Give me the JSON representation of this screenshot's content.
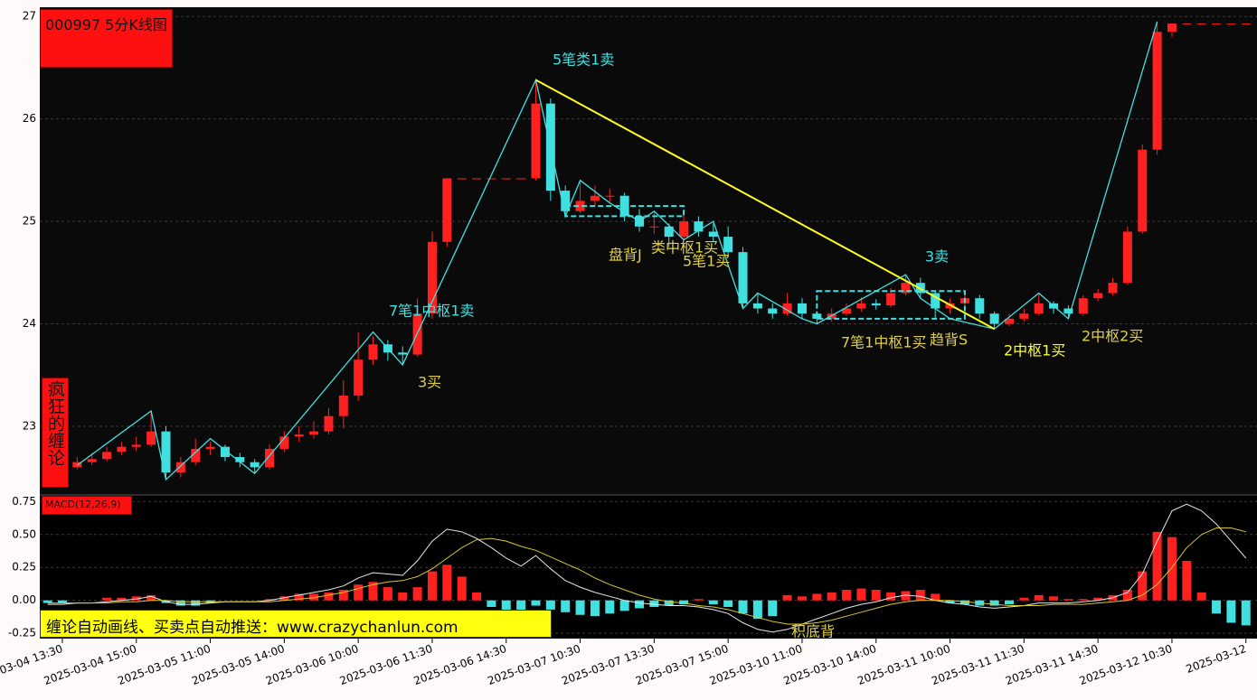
{
  "chart_data": [
    {
      "type": "candlestick",
      "title": "000997 5分K线图",
      "side_label": "疯狂的缠论",
      "categories": [
        null,
        "2025-03-04 13:30",
        null,
        null,
        null,
        null,
        "2025-03-04 15:00",
        null,
        null,
        null,
        null,
        "2025-03-05 11:00",
        null,
        null,
        null,
        null,
        "2025-03-05 14:00",
        null,
        null,
        null,
        null,
        "2025-03-06 10:00",
        null,
        null,
        null,
        null,
        "2025-03-06 11:30",
        null,
        null,
        null,
        null,
        "2025-03-06 14:30",
        null,
        null,
        null,
        null,
        "2025-03-07 10:30",
        null,
        null,
        null,
        null,
        "2025-03-07 13:30",
        null,
        null,
        null,
        null,
        "2025-03-07 15:00",
        null,
        null,
        null,
        null,
        "2025-03-10 11:00",
        null,
        null,
        null,
        null,
        "2025-03-10 14:00",
        null,
        null,
        null,
        null,
        "2025-03-11 10:00",
        null,
        null,
        null,
        null,
        "2025-03-11 11:30",
        null,
        null,
        null,
        null,
        "2025-03-11 14:30",
        null,
        null,
        null,
        null,
        "2025-03-12 10:30",
        null,
        null,
        null,
        null,
        "2025-03-12"
      ],
      "candles": [
        [
          22.6,
          22.68,
          22.58,
          22.62
        ],
        [
          22.62,
          22.68,
          22.56,
          22.6
        ],
        [
          22.6,
          22.7,
          22.58,
          22.65
        ],
        [
          22.65,
          22.74,
          22.62,
          22.68
        ],
        [
          22.68,
          22.8,
          22.66,
          22.75
        ],
        [
          22.75,
          22.85,
          22.72,
          22.8
        ],
        [
          22.8,
          22.9,
          22.76,
          22.82
        ],
        [
          22.82,
          23.15,
          22.8,
          22.95
        ],
        [
          22.95,
          23.0,
          22.48,
          22.55
        ],
        [
          22.55,
          22.7,
          22.5,
          22.65
        ],
        [
          22.65,
          22.88,
          22.62,
          22.78
        ],
        [
          22.78,
          22.85,
          22.72,
          22.8
        ],
        [
          22.8,
          22.82,
          22.66,
          22.7
        ],
        [
          22.7,
          22.74,
          22.6,
          22.65
        ],
        [
          22.65,
          22.68,
          22.54,
          22.6
        ],
        [
          22.6,
          22.82,
          22.58,
          22.78
        ],
        [
          22.78,
          22.95,
          22.75,
          22.9
        ],
        [
          22.9,
          23.0,
          22.85,
          22.92
        ],
        [
          22.92,
          23.05,
          22.88,
          22.95
        ],
        [
          22.95,
          23.18,
          22.92,
          23.1
        ],
        [
          23.1,
          23.45,
          22.98,
          23.3
        ],
        [
          23.3,
          23.92,
          23.25,
          23.65
        ],
        [
          23.65,
          23.88,
          23.6,
          23.8
        ],
        [
          23.8,
          23.84,
          23.64,
          23.72
        ],
        [
          23.72,
          23.78,
          23.6,
          23.7
        ],
        [
          23.7,
          24.25,
          23.68,
          24.1
        ],
        [
          24.1,
          24.9,
          24.05,
          24.8
        ],
        [
          24.8,
          25.42,
          24.75,
          25.42
        ],
        [
          25.42,
          25.42,
          25.42,
          25.42
        ],
        [
          25.42,
          25.42,
          25.42,
          25.42
        ],
        [
          25.42,
          25.42,
          25.42,
          25.42
        ],
        [
          25.42,
          25.42,
          25.42,
          25.42
        ],
        [
          25.42,
          25.42,
          25.42,
          25.42
        ],
        [
          25.42,
          26.38,
          25.4,
          26.15
        ],
        [
          26.15,
          26.2,
          25.2,
          25.3
        ],
        [
          25.3,
          25.35,
          25.05,
          25.1
        ],
        [
          25.1,
          25.4,
          25.08,
          25.2
        ],
        [
          25.2,
          25.35,
          25.15,
          25.25
        ],
        [
          25.25,
          25.32,
          25.18,
          25.25
        ],
        [
          25.25,
          25.28,
          25.0,
          25.05
        ],
        [
          25.05,
          25.12,
          24.9,
          24.95
        ],
        [
          24.95,
          25.1,
          24.88,
          24.95
        ],
        [
          24.95,
          24.98,
          24.75,
          24.85
        ],
        [
          24.85,
          25.08,
          24.82,
          25.0
        ],
        [
          25.0,
          25.05,
          24.85,
          24.9
        ],
        [
          24.9,
          24.98,
          24.8,
          24.85
        ],
        [
          24.85,
          24.95,
          24.65,
          24.7
        ],
        [
          24.7,
          24.75,
          24.15,
          24.2
        ],
        [
          24.2,
          24.3,
          24.1,
          24.15
        ],
        [
          24.15,
          24.2,
          24.05,
          24.1
        ],
        [
          24.1,
          24.3,
          24.08,
          24.2
        ],
        [
          24.2,
          24.25,
          24.05,
          24.1
        ],
        [
          24.1,
          24.12,
          24.0,
          24.05
        ],
        [
          24.05,
          24.15,
          24.02,
          24.1
        ],
        [
          24.1,
          24.2,
          24.08,
          24.15
        ],
        [
          24.15,
          24.26,
          24.12,
          24.2
        ],
        [
          24.2,
          24.24,
          24.14,
          24.18
        ],
        [
          24.18,
          24.35,
          24.16,
          24.3
        ],
        [
          24.3,
          24.48,
          24.28,
          24.4
        ],
        [
          24.4,
          24.45,
          24.25,
          24.3
        ],
        [
          24.3,
          24.32,
          24.05,
          24.15
        ],
        [
          24.15,
          24.25,
          24.1,
          24.2
        ],
        [
          24.2,
          24.32,
          24.18,
          24.25
        ],
        [
          24.25,
          24.28,
          24.05,
          24.1
        ],
        [
          24.1,
          24.12,
          23.95,
          24.0
        ],
        [
          24.0,
          24.1,
          23.98,
          24.05
        ],
        [
          24.05,
          24.15,
          24.02,
          24.1
        ],
        [
          24.1,
          24.3,
          24.08,
          24.2
        ],
        [
          24.2,
          24.22,
          24.1,
          24.15
        ],
        [
          24.15,
          24.18,
          24.05,
          24.1
        ],
        [
          24.1,
          24.28,
          24.08,
          24.25
        ],
        [
          24.25,
          24.34,
          24.22,
          24.3
        ],
        [
          24.3,
          24.45,
          24.28,
          24.4
        ],
        [
          24.4,
          24.95,
          24.38,
          24.9
        ],
        [
          24.9,
          25.75,
          24.88,
          25.7
        ],
        [
          25.7,
          26.95,
          25.65,
          26.85
        ],
        [
          26.85,
          26.93,
          26.8,
          26.93
        ],
        [
          26.93,
          26.93,
          26.93,
          26.93
        ],
        [
          26.93,
          26.93,
          26.93,
          26.93
        ],
        [
          26.93,
          26.93,
          26.93,
          26.93
        ],
        [
          26.93,
          26.93,
          26.93,
          26.93
        ],
        [
          26.93,
          26.93,
          26.93,
          26.93
        ]
      ],
      "up_color": "#ff2020",
      "down_color": "#40e0e0",
      "ylim": [
        22.33,
        27.09
      ],
      "yticks": [
        23,
        24,
        25,
        26,
        27
      ],
      "grid": true,
      "bi": {
        "color": "#40e0e0",
        "x": [
          2,
          7,
          8,
          11,
          14,
          22,
          24,
          33,
          35,
          36,
          38,
          40,
          41,
          43,
          45,
          47,
          48,
          51,
          52,
          58,
          59,
          61,
          64,
          67,
          69,
          75
        ],
        "values": [
          22.62,
          23.15,
          22.48,
          22.88,
          22.54,
          23.92,
          23.6,
          26.38,
          25.05,
          25.4,
          25.18,
          25.0,
          25.1,
          24.82,
          25.0,
          24.15,
          24.3,
          24.05,
          24.0,
          24.48,
          24.25,
          24.05,
          23.95,
          24.3,
          24.05,
          26.95
        ]
      },
      "trend": {
        "color": "#ffff20",
        "x": [
          33,
          64
        ],
        "values": [
          26.38,
          23.95
        ]
      },
      "pivot_color": "#40e0e0",
      "pivots": [
        {
          "x": [
            35,
            43
          ],
          "values": [
            25.05,
            25.15
          ]
        },
        {
          "x": [
            52,
            62
          ],
          "values": [
            24.05,
            24.32
          ]
        }
      ],
      "annotations": [
        {
          "text": "5笔类1卖",
          "color": "#40e0e0"
        },
        {
          "text": "7笔1中枢1卖",
          "color": "#40e0e0"
        },
        {
          "text": "3买",
          "color": "#e0d040"
        },
        {
          "text": "盘背J",
          "color": "#e0d040"
        },
        {
          "text": "类中枢1买",
          "color": "#e0d040"
        },
        {
          "text": "5笔1买",
          "color": "#e0d040"
        },
        {
          "text": "3卖",
          "color": "#40e0e0"
        },
        {
          "text": "7笔1中枢1买",
          "color": "#e0d040"
        },
        {
          "text": "趋背S",
          "color": "#e0d040"
        },
        {
          "text": "2中枢1买",
          "color": "#ffff20"
        },
        {
          "text": "2中枢2买",
          "color": "#e0d040"
        }
      ]
    },
    {
      "type": "macd",
      "title": "MACD(12,26,9)",
      "ylim": [
        -0.29,
        0.8
      ],
      "yticks": [
        0.75,
        {
          "value": 0.5,
          "label": "0.50"
        },
        0.25,
        {
          "value": 0,
          "label": "0.00"
        },
        -0.25
      ],
      "grid": true,
      "up_color": "#ff2020",
      "down_color": "#40e0e0",
      "histogram": [
        -0.02,
        -0.02,
        0.0,
        0.0,
        0.02,
        0.02,
        0.03,
        0.04,
        -0.02,
        -0.04,
        -0.04,
        -0.02,
        0.0,
        0.0,
        0.0,
        0.01,
        0.03,
        0.05,
        0.05,
        0.06,
        0.08,
        0.12,
        0.14,
        0.1,
        0.06,
        0.1,
        0.22,
        0.27,
        0.18,
        0.06,
        -0.05,
        -0.08,
        -0.09,
        -0.04,
        -0.07,
        -0.09,
        -0.11,
        -0.12,
        -0.1,
        -0.08,
        -0.06,
        -0.05,
        -0.04,
        -0.03,
        0.01,
        -0.03,
        -0.05,
        -0.1,
        -0.14,
        -0.12,
        0.04,
        0.03,
        0.05,
        0.06,
        0.08,
        0.09,
        0.08,
        0.06,
        0.07,
        0.08,
        0.05,
        -0.02,
        -0.03,
        -0.04,
        -0.04,
        -0.03,
        0.02,
        0.04,
        0.03,
        0.01,
        0.01,
        0.02,
        0.04,
        0.08,
        0.22,
        0.52,
        0.48,
        0.3,
        0.06,
        -0.1,
        -0.17,
        -0.19
      ],
      "series": [
        {
          "color": "#e8e8e8",
          "values": [
            -0.03,
            -0.03,
            -0.02,
            -0.02,
            -0.01,
            0.0,
            0.01,
            0.03,
            -0.01,
            -0.03,
            -0.03,
            -0.02,
            -0.01,
            -0.01,
            -0.01,
            0.0,
            0.02,
            0.04,
            0.06,
            0.08,
            0.11,
            0.17,
            0.21,
            0.2,
            0.19,
            0.3,
            0.45,
            0.54,
            0.52,
            0.47,
            0.4,
            0.32,
            0.26,
            0.34,
            0.24,
            0.15,
            0.1,
            0.06,
            0.03,
            0.0,
            -0.02,
            -0.03,
            -0.04,
            -0.04,
            -0.05,
            -0.07,
            -0.1,
            -0.17,
            -0.22,
            -0.24,
            -0.22,
            -0.18,
            -0.14,
            -0.1,
            -0.06,
            -0.03,
            -0.01,
            0.02,
            0.04,
            0.03,
            0.0,
            -0.02,
            -0.03,
            -0.05,
            -0.06,
            -0.05,
            -0.04,
            -0.02,
            -0.02,
            -0.02,
            -0.01,
            0.0,
            0.02,
            0.06,
            0.2,
            0.45,
            0.68,
            0.73,
            0.68,
            0.58,
            0.45,
            0.32
          ]
        },
        {
          "color": "#d8c830",
          "values": [
            -0.02,
            -0.02,
            -0.02,
            -0.02,
            -0.02,
            -0.01,
            -0.01,
            0.0,
            0.0,
            -0.01,
            -0.01,
            -0.01,
            -0.01,
            -0.01,
            -0.01,
            -0.01,
            0.0,
            0.01,
            0.02,
            0.04,
            0.06,
            0.09,
            0.12,
            0.14,
            0.15,
            0.18,
            0.24,
            0.32,
            0.4,
            0.46,
            0.47,
            0.45,
            0.41,
            0.38,
            0.33,
            0.28,
            0.23,
            0.17,
            0.12,
            0.08,
            0.04,
            0.01,
            -0.01,
            -0.02,
            -0.04,
            -0.05,
            -0.07,
            -0.1,
            -0.13,
            -0.16,
            -0.18,
            -0.18,
            -0.17,
            -0.15,
            -0.12,
            -0.09,
            -0.06,
            -0.03,
            -0.01,
            0.0,
            0.0,
            0.0,
            -0.01,
            -0.02,
            -0.03,
            -0.04,
            -0.04,
            -0.04,
            -0.03,
            -0.03,
            -0.03,
            -0.02,
            -0.01,
            0.0,
            0.04,
            0.12,
            0.25,
            0.4,
            0.5,
            0.55,
            0.55,
            0.52
          ]
        }
      ],
      "annotations": [
        {
          "text": "积底背",
          "color": "#e0d040"
        }
      ]
    }
  ],
  "banner": "缠论自动画线、买卖点自动推送：www.crazychanlun.com"
}
